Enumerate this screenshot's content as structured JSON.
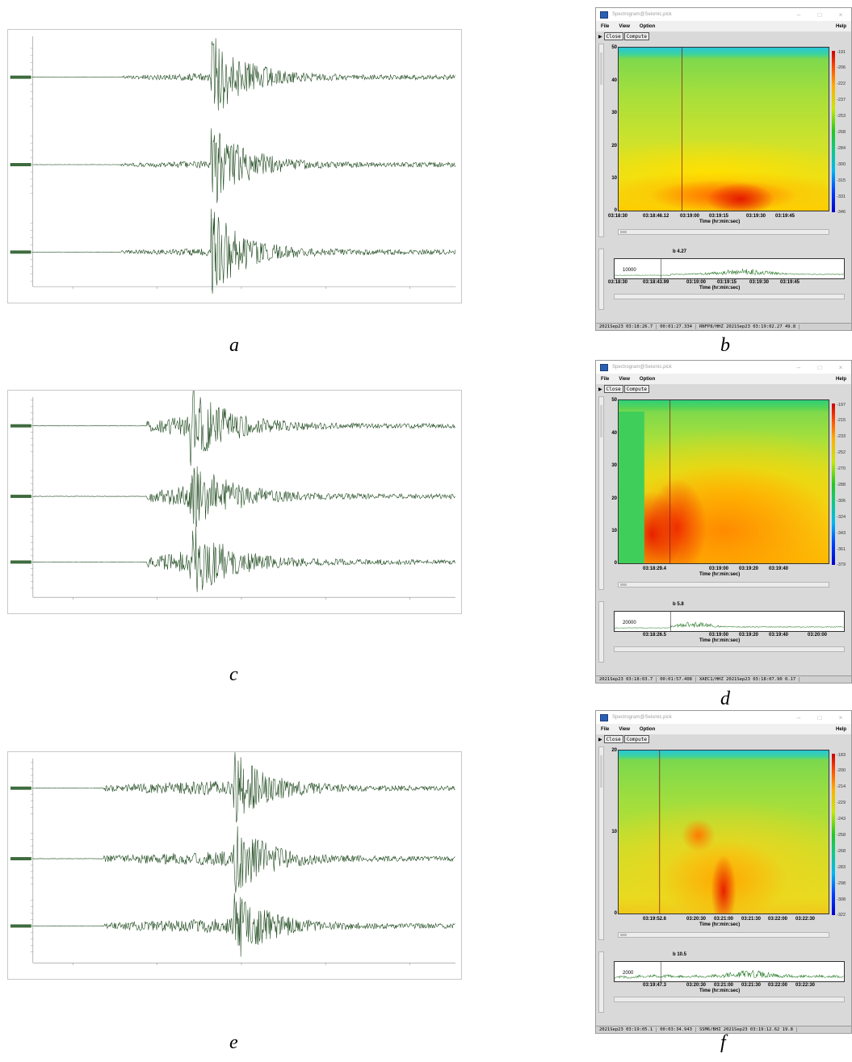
{
  "captions": {
    "a": "a",
    "b": "b",
    "c": "c",
    "d": "d",
    "e": "e",
    "f": "f"
  },
  "window_title": "Spectrogram@Seismic.pick",
  "menu": {
    "file": "File",
    "view": "View",
    "option": "Option",
    "help": "Help"
  },
  "toolbar": {
    "close": "Close",
    "compute": "Compute"
  },
  "time_title": "Time (hr:min:sec)",
  "windows": {
    "b": {
      "yticks": [
        "50",
        "40",
        "30",
        "20",
        "10",
        "0"
      ],
      "xticks": [
        "03:18:30",
        "03:18:46.12",
        "03:19:00",
        "03:19:15",
        "03:19:30",
        "03:19:45"
      ],
      "colorbar": [
        "-191",
        "-206",
        "-222",
        "-237",
        "-253",
        "-268",
        "-284",
        "-300",
        "-315",
        "-331",
        "-346"
      ],
      "marker": "b 4.27",
      "trace_value": "10000",
      "trace_xticks": [
        "03:18:30",
        "03:18:43.99",
        "03:19:00",
        "03:19:15",
        "03:19:30",
        "03:19:45"
      ],
      "status": [
        "2021Sep23 03:18:26.7",
        "00:01:27.334",
        "RNFP8/HHZ  2021Sep23 03:19:02.27  49.8"
      ]
    },
    "d": {
      "yticks": [
        "50",
        "40",
        "30",
        "20",
        "10",
        "0"
      ],
      "xticks": [
        "03:18:29.4",
        "03:19:00",
        "03:19:20",
        "03:19:40"
      ],
      "colorbar": [
        "-197",
        "-215",
        "-233",
        "-252",
        "-270",
        "-288",
        "-306",
        "-324",
        "-343",
        "-361",
        "-379"
      ],
      "marker": "b 5.8",
      "trace_value": "20000",
      "trace_xticks": [
        "03:18:26.5",
        "03:19:00",
        "03:19:20",
        "03:19:40",
        "03:20:00"
      ],
      "status": [
        "2021Sep23 03:18:03.7",
        "00:01:57.408",
        "XAEC1/HHZ  2021Sep23 03:18:07.90  0.17"
      ]
    },
    "f": {
      "yticks": [
        "20",
        "10",
        "0"
      ],
      "xticks": [
        "03:19:52.6",
        "03:20:30",
        "03:21:00",
        "03:21:30",
        "03:22:00",
        "03:22:30"
      ],
      "colorbar": [
        "-183",
        "-200",
        "-214",
        "-229",
        "-243",
        "-258",
        "-268",
        "-283",
        "-298",
        "-308",
        "-322"
      ],
      "marker": "b 10.5",
      "trace_value": "2000",
      "trace_xticks": [
        "03:19:47.3",
        "03:20:30",
        "03:21:00",
        "03:21:30",
        "03:22:00",
        "03:22:30"
      ],
      "status": [
        "2021Sep23 03:19:05.1",
        "00:03:34.943",
        "SSM6/BHZ  2021Sep23 03:19:12.62  19.8"
      ]
    }
  }
}
